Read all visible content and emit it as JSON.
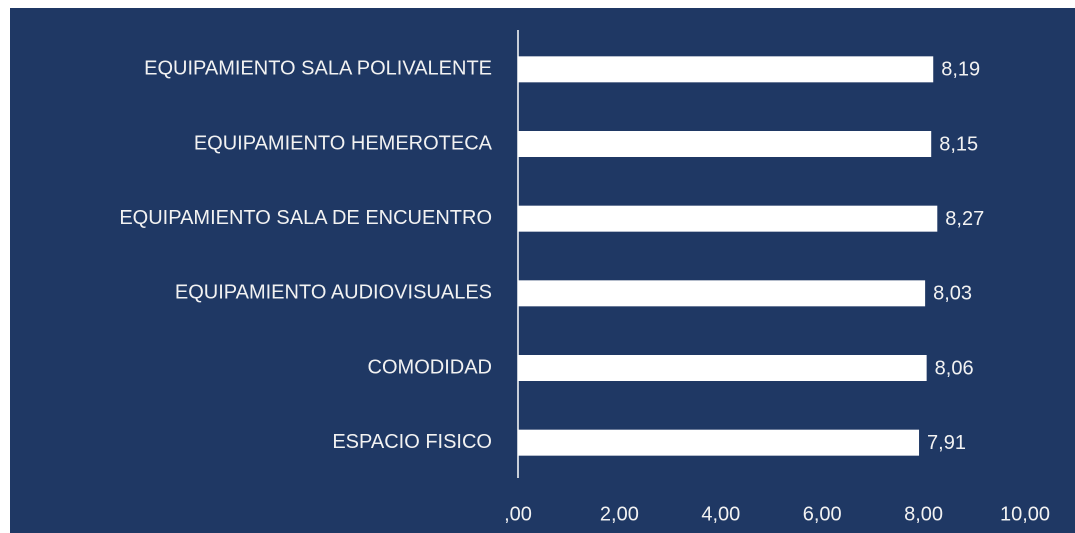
{
  "chart_data": {
    "type": "barh",
    "categories": [
      "EQUIPAMIENTO SALA POLIVALENTE",
      "EQUIPAMIENTO HEMEROTECA",
      "EQUIPAMIENTO SALA DE ENCUENTRO",
      "EQUIPAMIENTO AUDIOVISUALES",
      "COMODIDAD",
      "ESPACIO FISICO"
    ],
    "values": [
      8.19,
      8.15,
      8.27,
      8.03,
      8.06,
      7.91
    ],
    "value_labels": [
      "8,19",
      "8,15",
      "8,27",
      "8,03",
      "8,06",
      "7,91"
    ],
    "color": "#ffffff",
    "xlim": [
      0,
      10
    ],
    "xticks": [
      {
        "value": 0,
        "label": ",00"
      },
      {
        "value": 2,
        "label": "2,00"
      },
      {
        "value": 4,
        "label": "4,00"
      },
      {
        "value": 6,
        "label": "6,00"
      },
      {
        "value": 8,
        "label": "8,00"
      },
      {
        "value": 10,
        "label": "10,00"
      }
    ],
    "grid": false
  }
}
